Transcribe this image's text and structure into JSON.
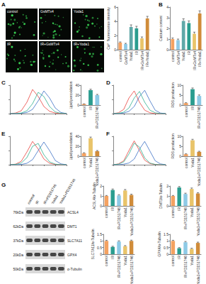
{
  "panel_labels": [
    "A",
    "B",
    "C",
    "D",
    "E",
    "F",
    "G"
  ],
  "images": {
    "labels": [
      "control",
      "GsMTx4",
      "Yoda1",
      "IR",
      "IR+GsMTx4",
      "IR+Yoda1"
    ]
  },
  "blot": {
    "lanes": [
      "control",
      "IR",
      "IR+PD151746",
      "Yoda1",
      "Yoda1+PD151746"
    ],
    "rows": [
      {
        "name": "ACSL4",
        "size": "76kDa"
      },
      {
        "name": "DMT1",
        "size": "62kDa"
      },
      {
        "name": "SLC7A11",
        "size": "37kDa"
      },
      {
        "name": "GPX4",
        "size": "20kDa"
      },
      {
        "name": "α-Tubulin",
        "size": "50kDa"
      }
    ]
  },
  "chart_data": [
    {
      "type": "bar",
      "categories": [
        "control",
        "GsMTx4",
        "Yoda1",
        "IR",
        "IR+GsMTx4",
        "IR+Yoda1"
      ],
      "values": [
        1,
        0.8,
        3.2,
        3.0,
        1.6,
        4.4
      ],
      "errors": [
        0.1,
        0.1,
        0.3,
        0.3,
        0.2,
        0.3
      ],
      "colors": [
        "#f4a261",
        "#8ecae6",
        "#5fa8a8",
        "#2a9d8f",
        "#e9c46a",
        "#d08c3a"
      ],
      "ylabel": "Ca²⁺ fluorescence intensity",
      "ylim": [
        0,
        6
      ],
      "yticks": [
        0,
        2,
        4,
        6
      ]
    },
    {
      "type": "bar",
      "categories": [
        "control",
        "GsMTx4",
        "Yoda1",
        "IR",
        "IR+GsMTx4",
        "IR+Yoda1"
      ],
      "values": [
        1,
        0.9,
        2.7,
        2.5,
        1.5,
        3.4
      ],
      "errors": [
        0.1,
        0.1,
        0.2,
        0.2,
        0.15,
        0.25
      ],
      "colors": [
        "#f4a261",
        "#8ecae6",
        "#5fa8a8",
        "#2a9d8f",
        "#e9c46a",
        "#d08c3a"
      ],
      "ylabel": "Calcium content",
      "ylim": [
        0,
        4
      ],
      "yticks": [
        0,
        1,
        2,
        3,
        4
      ]
    },
    {
      "type": "line",
      "x": [
        0,
        1,
        2,
        3,
        4,
        5,
        6,
        7,
        8,
        9,
        10
      ],
      "series": [
        {
          "color": "#e8413c",
          "values": [
            0,
            2,
            10,
            40,
            85,
            60,
            25,
            8,
            2,
            0,
            0
          ]
        },
        {
          "color": "#3a6fc4",
          "values": [
            0,
            0,
            1,
            4,
            15,
            45,
            80,
            55,
            20,
            4,
            0
          ]
        },
        {
          "color": "#2fae8f",
          "values": [
            0,
            0,
            2,
            10,
            35,
            75,
            60,
            25,
            6,
            1,
            0
          ]
        }
      ],
      "xlim": [
        0,
        10
      ],
      "ylim": [
        0,
        100
      ],
      "xticks": [
        0,
        2,
        4,
        6,
        8,
        10
      ],
      "yticks": [
        0,
        50,
        100
      ],
      "tick_labels": false
    },
    {
      "type": "bar",
      "categories": [
        "control",
        "IR",
        "IR+PD151746"
      ],
      "values": [
        2,
        30,
        20
      ],
      "errors": [
        0.5,
        2,
        1.5
      ],
      "colors": [
        "#f4a261",
        "#2a9d8f",
        "#8ecae6"
      ],
      "ylabel": "Lipid peroxidation",
      "ylim": [
        0,
        40
      ],
      "yticks": [
        0,
        20,
        40
      ]
    },
    {
      "type": "line",
      "x": [
        0,
        1,
        2,
        3,
        4,
        5,
        6,
        7,
        8,
        9,
        10
      ],
      "series": [
        {
          "color": "#e8413c",
          "values": [
            0,
            3,
            15,
            55,
            80,
            40,
            12,
            3,
            0,
            0,
            0
          ]
        },
        {
          "color": "#3a6fc4",
          "values": [
            0,
            0,
            2,
            8,
            25,
            60,
            82,
            45,
            12,
            2,
            0
          ]
        },
        {
          "color": "#2fae8f",
          "values": [
            0,
            1,
            5,
            20,
            55,
            78,
            40,
            12,
            3,
            0,
            0
          ]
        }
      ],
      "xlim": [
        0,
        10
      ],
      "ylim": [
        0,
        100
      ],
      "xticks": [
        0,
        2,
        4,
        6,
        8,
        10
      ],
      "yticks": [
        0,
        50,
        100
      ],
      "tick_labels": false
    },
    {
      "type": "bar",
      "categories": [
        "control",
        "IR",
        "IR+PD151746"
      ],
      "values": [
        1,
        8,
        4.6
      ],
      "errors": [
        0.2,
        0.6,
        0.5
      ],
      "colors": [
        "#f4a261",
        "#2a9d8f",
        "#8ecae6"
      ],
      "ylabel": "ROS production",
      "ylim": [
        0,
        10
      ],
      "yticks": [
        0,
        5,
        10
      ]
    },
    {
      "type": "line",
      "x": [
        0,
        1,
        2,
        3,
        4,
        5,
        6,
        7,
        8,
        9,
        10
      ],
      "series": [
        {
          "color": "#e8413c",
          "values": [
            0,
            2,
            12,
            45,
            82,
            55,
            20,
            5,
            1,
            0,
            0
          ]
        },
        {
          "color": "#3a6fc4",
          "values": [
            0,
            0,
            1,
            5,
            18,
            50,
            80,
            50,
            15,
            3,
            0
          ]
        },
        {
          "color": "#2fae8f",
          "values": [
            0,
            1,
            6,
            25,
            65,
            75,
            35,
            10,
            2,
            0,
            0
          ]
        }
      ],
      "xlim": [
        0,
        10
      ],
      "ylim": [
        0,
        100
      ],
      "xticks": [
        0,
        2,
        4,
        6,
        8,
        10
      ],
      "yticks": [
        0,
        50,
        100
      ],
      "tick_labels": false
    },
    {
      "type": "bar",
      "categories": [
        "control",
        "Yoda1",
        "Yoda1+PD151746"
      ],
      "values": [
        6,
        36,
        10
      ],
      "errors": [
        1,
        2.5,
        1.5
      ],
      "colors": [
        "#f4a261",
        "#e9c46a",
        "#d08c3a"
      ],
      "ylabel": "Lipid peroxidation",
      "ylim": [
        0,
        40
      ],
      "yticks": [
        0,
        20,
        40
      ]
    },
    {
      "type": "line",
      "x": [
        0,
        1,
        2,
        3,
        4,
        5,
        6,
        7,
        8,
        9,
        10
      ],
      "series": [
        {
          "color": "#e8413c",
          "values": [
            0,
            3,
            14,
            50,
            84,
            50,
            16,
            4,
            1,
            0,
            0
          ]
        },
        {
          "color": "#3a6fc4",
          "values": [
            0,
            0,
            2,
            6,
            20,
            55,
            82,
            48,
            14,
            3,
            0
          ]
        },
        {
          "color": "#2fae8f",
          "values": [
            0,
            2,
            10,
            38,
            76,
            62,
            24,
            6,
            1,
            0,
            0
          ]
        }
      ],
      "xlim": [
        0,
        10
      ],
      "ylim": [
        0,
        100
      ],
      "xticks": [
        0,
        2,
        4,
        6,
        8,
        10
      ],
      "yticks": [
        0,
        50,
        100
      ],
      "tick_labels": false
    },
    {
      "type": "bar",
      "categories": [
        "control",
        "Yoda1",
        "Yoda1+PD151746"
      ],
      "values": [
        1,
        8,
        2.2
      ],
      "errors": [
        0.2,
        0.5,
        0.3
      ],
      "colors": [
        "#f4a261",
        "#e9c46a",
        "#d08c3a"
      ],
      "ylabel": "ROS production",
      "ylim": [
        0,
        10
      ],
      "yticks": [
        0,
        5,
        10
      ]
    },
    {
      "type": "bar",
      "categories": [
        "control",
        "IR",
        "IR+PD151746",
        "Yoda1",
        "Yoda1+PD151746"
      ],
      "values": [
        1,
        1.6,
        1.05,
        1.55,
        1.1
      ],
      "errors": [
        0.05,
        0.1,
        0.08,
        0.1,
        0.08
      ],
      "colors": [
        "#f4a261",
        "#2a9d8f",
        "#8ecae6",
        "#e9c46a",
        "#d08c3a"
      ],
      "ylabel": "ACSL4/α-Tubulin",
      "ylim": [
        0,
        2
      ],
      "yticks": [
        0,
        1,
        2
      ]
    },
    {
      "type": "bar",
      "categories": [
        "control",
        "IR",
        "IR+PD151746",
        "Yoda1",
        "Yoda1+PD151746"
      ],
      "values": [
        1,
        1.85,
        1.2,
        1.7,
        1.25
      ],
      "errors": [
        0.05,
        0.1,
        0.08,
        0.1,
        0.08
      ],
      "colors": [
        "#f4a261",
        "#2a9d8f",
        "#8ecae6",
        "#e9c46a",
        "#d08c3a"
      ],
      "ylabel": "DMT1/α-Tubulin",
      "ylim": [
        0,
        2
      ],
      "yticks": [
        0,
        1,
        2
      ]
    },
    {
      "type": "bar",
      "categories": [
        "control",
        "IR",
        "IR+PD151746",
        "Yoda1",
        "Yoda1+PD151746"
      ],
      "values": [
        1,
        0.55,
        0.95,
        0.6,
        1.0
      ],
      "errors": [
        0.05,
        0.05,
        0.06,
        0.05,
        0.06
      ],
      "colors": [
        "#f4a261",
        "#2a9d8f",
        "#8ecae6",
        "#e9c46a",
        "#d08c3a"
      ],
      "ylabel": "SLC7A11/α-Tubulin",
      "ylim": [
        0,
        1.5
      ],
      "yticks": [
        0,
        0.5,
        1,
        1.5
      ]
    },
    {
      "type": "bar",
      "categories": [
        "control",
        "IR",
        "IR+PD151746",
        "Yoda1",
        "Yoda1+PD151746"
      ],
      "values": [
        1,
        0.45,
        0.9,
        0.4,
        0.85
      ],
      "errors": [
        0.05,
        0.05,
        0.06,
        0.05,
        0.06
      ],
      "colors": [
        "#f4a261",
        "#2a9d8f",
        "#8ecae6",
        "#e9c46a",
        "#d08c3a"
      ],
      "ylabel": "GPX4/α-Tubulin",
      "ylim": [
        0,
        1.5
      ],
      "yticks": [
        0,
        0.5,
        1,
        1.5
      ]
    }
  ]
}
